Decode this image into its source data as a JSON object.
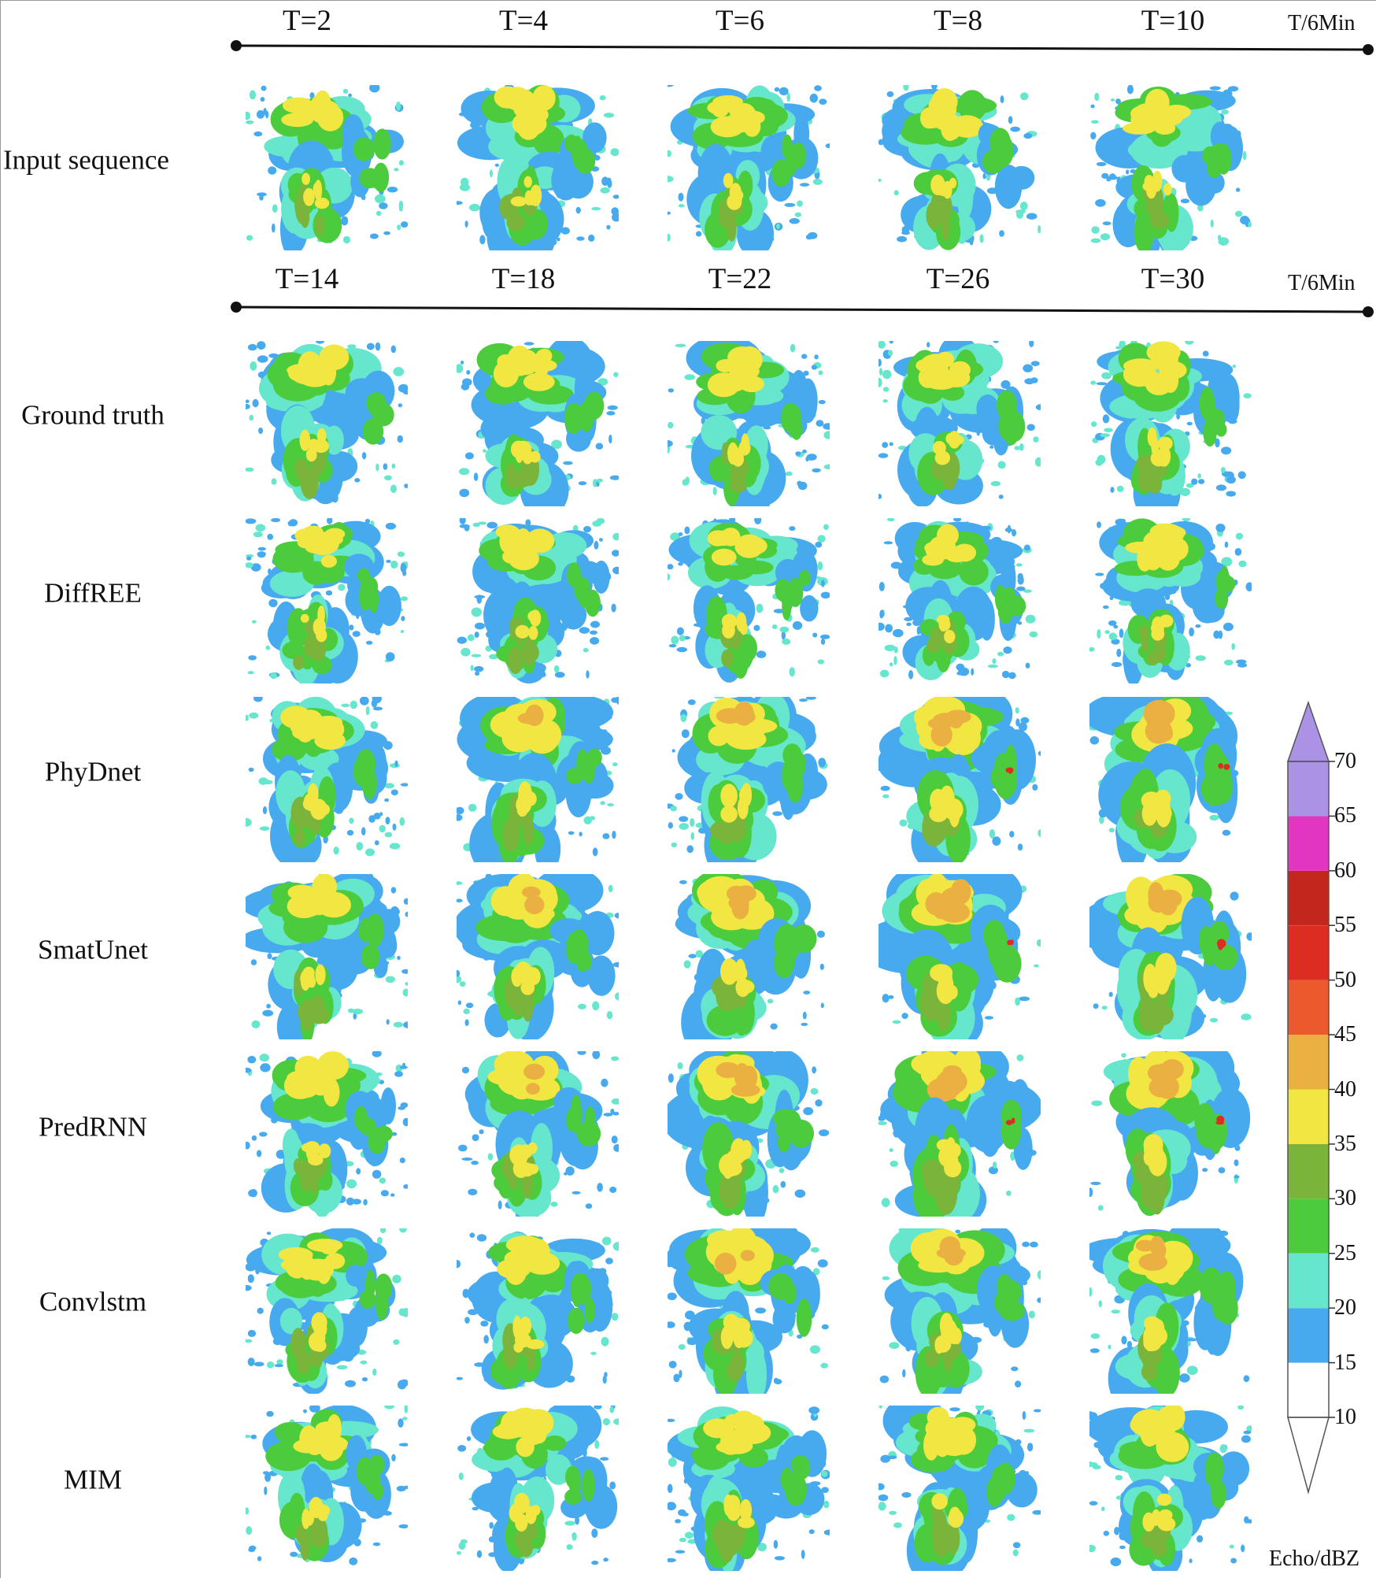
{
  "timeline_input": {
    "labels": [
      "T=2",
      "T=4",
      "T=6",
      "T=8",
      "T=10"
    ],
    "unit": "T/6Min"
  },
  "timeline_output": {
    "labels": [
      "T=14",
      "T=18",
      "T=22",
      "T=26",
      "T=30"
    ],
    "unit": "T/6Min"
  },
  "rows": [
    "Input sequence",
    "Ground truth",
    "DiffREE",
    "PhyDnet",
    "SmatUnet",
    "PredRNN",
    "Convlstm",
    "MIM"
  ],
  "colorbar": {
    "title": "Echo/dBZ",
    "ticks": [
      "70",
      "65",
      "60",
      "55",
      "50",
      "45",
      "40",
      "35",
      "30",
      "25",
      "20",
      "15",
      "10"
    ],
    "bands": [
      {
        "from": 10,
        "to": 15,
        "color": "#ffffff"
      },
      {
        "from": 15,
        "to": 20,
        "color": "#47aaee"
      },
      {
        "from": 20,
        "to": 25,
        "color": "#66e6cc"
      },
      {
        "from": 25,
        "to": 30,
        "color": "#4ccc3c"
      },
      {
        "from": 30,
        "to": 35,
        "color": "#7ab43a"
      },
      {
        "from": 35,
        "to": 40,
        "color": "#f2e642"
      },
      {
        "from": 40,
        "to": 45,
        "color": "#eab042"
      },
      {
        "from": 45,
        "to": 50,
        "color": "#ea5a2c"
      },
      {
        "from": 50,
        "to": 55,
        "color": "#dd2c22"
      },
      {
        "from": 55,
        "to": 60,
        "color": "#c2261c"
      },
      {
        "from": 60,
        "to": 65,
        "color": "#e236c2"
      },
      {
        "from": 65,
        "to": 70,
        "color": "#ac92e4"
      }
    ]
  },
  "intensity": [
    [
      0.55,
      0.55,
      0.55,
      0.55,
      0.55
    ],
    [
      0.55,
      0.55,
      0.55,
      0.55,
      0.55
    ],
    [
      0.45,
      0.45,
      0.45,
      0.45,
      0.45
    ],
    [
      0.55,
      0.7,
      0.75,
      0.85,
      0.9
    ],
    [
      0.55,
      0.7,
      0.8,
      0.85,
      0.9
    ],
    [
      0.55,
      0.7,
      0.8,
      0.85,
      0.85
    ],
    [
      0.55,
      0.6,
      0.7,
      0.75,
      0.8
    ],
    [
      0.55,
      0.55,
      0.6,
      0.6,
      0.6
    ]
  ]
}
